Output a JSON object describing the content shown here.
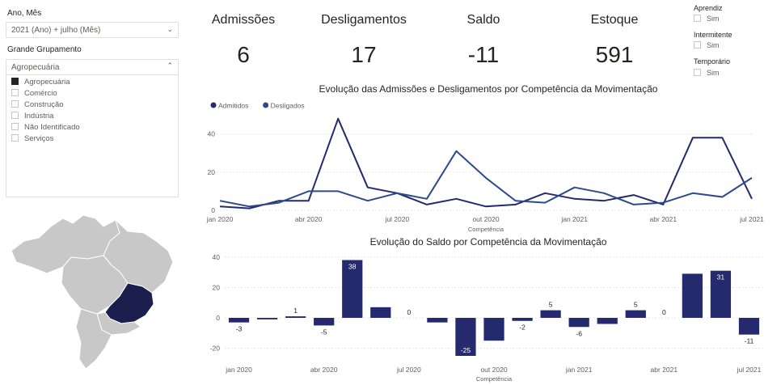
{
  "slicers": {
    "period": {
      "title": "Ano, Mês",
      "value": "2021 (Ano) + julho (Mês)"
    },
    "group": {
      "title": "Grande Grupamento",
      "value": "Agropecuária",
      "items": [
        {
          "label": "Agropecuária",
          "checked": true
        },
        {
          "label": "Comércio",
          "checked": false
        },
        {
          "label": "Construção",
          "checked": false
        },
        {
          "label": "Indústria",
          "checked": false
        },
        {
          "label": "Não Identificado",
          "checked": false
        },
        {
          "label": "Serviços",
          "checked": false
        }
      ]
    }
  },
  "kpis": [
    {
      "label": "Admissões",
      "value": "6"
    },
    {
      "label": "Desligamentos",
      "value": "17"
    },
    {
      "label": "Saldo",
      "value": "-11"
    },
    {
      "label": "Estoque",
      "value": "591"
    }
  ],
  "filters": [
    {
      "title": "Aprendiz",
      "option": "Sim"
    },
    {
      "title": "Intermitente",
      "option": "Sim"
    },
    {
      "title": "Temporário",
      "option": "Sim"
    }
  ],
  "map": {
    "highlight_color": "#1b1f4d",
    "base_color": "#c8c8c8"
  },
  "chart_data": [
    {
      "type": "line",
      "title": "Evolução das Admissões e Desligamentos por Competência da Movimentação",
      "xlabel": "Competência",
      "x": [
        "jan 2020",
        "fev 2020",
        "mar 2020",
        "abr 2020",
        "mai 2020",
        "jun 2020",
        "jul 2020",
        "ago 2020",
        "set 2020",
        "out 2020",
        "nov 2020",
        "dez 2020",
        "jan 2021",
        "fev 2021",
        "mar 2021",
        "abr 2021",
        "mai 2021",
        "jun 2021",
        "jul 2021"
      ],
      "tick_labels": [
        "jan 2020",
        "abr 2020",
        "jul 2020",
        "out 2020",
        "jan 2021",
        "abr 2021",
        "jul 2021"
      ],
      "yticks": [
        0,
        20,
        40
      ],
      "ylim": [
        0,
        50
      ],
      "legend_position": "top-left",
      "series": [
        {
          "name": "Admitidos",
          "color": "#252a6e",
          "values": [
            2,
            1,
            5,
            5,
            48,
            12,
            9,
            3,
            6,
            2,
            3,
            9,
            6,
            5,
            8,
            3,
            38,
            38,
            6
          ]
        },
        {
          "name": "Desligados",
          "color": "#2e4a8a",
          "values": [
            5,
            2,
            4,
            10,
            10,
            5,
            9,
            6,
            31,
            17,
            5,
            4,
            12,
            9,
            3,
            4,
            9,
            7,
            17
          ]
        }
      ]
    },
    {
      "type": "bar",
      "title": "Evolução do Saldo por Competência da Movimentação",
      "xlabel": "Competência",
      "categories": [
        "jan 2020",
        "fev 2020",
        "mar 2020",
        "abr 2020",
        "mai 2020",
        "jun 2020",
        "jul 2020",
        "ago 2020",
        "set 2020",
        "out 2020",
        "nov 2020",
        "dez 2020",
        "jan 2021",
        "fev 2021",
        "mar 2021",
        "abr 2021",
        "mai 2021",
        "jun 2021",
        "jul 2021"
      ],
      "tick_labels": [
        "jan 2020",
        "abr 2020",
        "jul 2020",
        "out 2020",
        "jan 2021",
        "abr 2021",
        "jul 2021"
      ],
      "values": [
        -3,
        -1,
        1,
        -5,
        38,
        7,
        0,
        -3,
        -25,
        -15,
        -2,
        5,
        -6,
        -4,
        5,
        0,
        29,
        31,
        -11
      ],
      "data_labels": [
        "-3",
        "",
        "1",
        "-5",
        "38",
        "",
        "0",
        "",
        "-25",
        "",
        "-2",
        "5",
        "-6",
        "",
        "5",
        "0",
        "",
        "31",
        "-11"
      ],
      "yticks": [
        -20,
        0,
        20,
        40
      ],
      "ylim": [
        -25,
        42
      ],
      "color": "#252a6e"
    }
  ]
}
